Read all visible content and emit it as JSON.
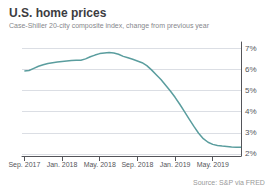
{
  "chart_data": {
    "type": "line",
    "title": "U.S. home prices",
    "subtitle": "Case-Shiller 20-city composite index, change from previous year",
    "annotations": [
      "Source: S&P via FRED"
    ],
    "color": "#5a9d9e",
    "x": [
      0,
      1,
      2,
      3,
      4,
      5,
      6,
      7,
      8,
      9,
      10,
      11,
      12,
      13,
      14,
      15,
      16,
      17,
      18,
      19,
      20,
      21,
      22,
      23,
      24,
      25,
      26,
      27,
      28,
      29,
      30,
      31,
      32,
      33,
      34,
      35,
      36,
      37,
      38,
      39,
      40,
      41,
      42,
      43,
      44,
      45,
      46
    ],
    "values": [
      5.93,
      5.95,
      6.05,
      6.15,
      6.22,
      6.28,
      6.32,
      6.35,
      6.38,
      6.4,
      6.42,
      6.43,
      6.44,
      6.5,
      6.6,
      6.68,
      6.75,
      6.78,
      6.8,
      6.78,
      6.72,
      6.62,
      6.55,
      6.48,
      6.4,
      6.32,
      6.18,
      5.98,
      5.75,
      5.52,
      5.25,
      4.98,
      4.68,
      4.35,
      4.0,
      3.65,
      3.3,
      2.98,
      2.72,
      2.55,
      2.45,
      2.4,
      2.37,
      2.35,
      2.33,
      2.32,
      2.31
    ],
    "xlim": [
      -0.5,
      46
    ],
    "xticks": [
      {
        "value": 0,
        "label": "Sep. 2017"
      },
      {
        "value": 8,
        "label": "Jan. 2018"
      },
      {
        "value": 16,
        "label": "May. 2018"
      },
      {
        "value": 24,
        "label": "Sep. 2018"
      },
      {
        "value": 32,
        "label": "Jan. 2019"
      },
      {
        "value": 40,
        "label": "May. 2019"
      }
    ],
    "ylim": [
      1.9,
      7.3
    ],
    "yticks": [
      {
        "value": 2,
        "label": "2%"
      },
      {
        "value": 3,
        "label": "3%"
      },
      {
        "value": 4,
        "label": "4%"
      },
      {
        "value": 5,
        "label": "5%"
      },
      {
        "value": 6,
        "label": "6%"
      },
      {
        "value": 7,
        "label": "7%"
      }
    ],
    "grid": true
  }
}
